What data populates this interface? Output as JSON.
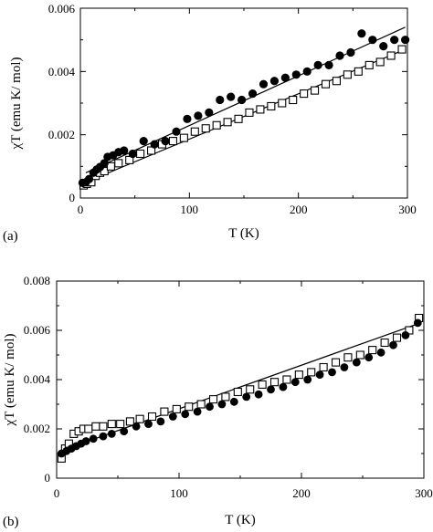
{
  "chart_data": [
    {
      "type": "scatter",
      "panel_label": "(a)",
      "xlabel": "T (K)",
      "ylabel": "χT (emu K/ mol)",
      "xlim": [
        0,
        300
      ],
      "ylim": [
        0,
        0.006
      ],
      "xticks": [
        "0",
        "100",
        "200",
        "300"
      ],
      "yticks": [
        "0",
        "0.002",
        "0.004",
        "0.006"
      ],
      "grid": false,
      "series": [
        {
          "marker": "filled-circle",
          "x": [
            2,
            5,
            8,
            12,
            15,
            18,
            22,
            25,
            30,
            35,
            40,
            48,
            58,
            68,
            78,
            88,
            98,
            108,
            118,
            128,
            138,
            148,
            158,
            168,
            178,
            188,
            198,
            208,
            218,
            228,
            238,
            248,
            258,
            268,
            278,
            288,
            298
          ],
          "y": [
            0.00048,
            0.0005,
            0.0006,
            0.0008,
            0.0009,
            0.00098,
            0.0011,
            0.0013,
            0.00135,
            0.00145,
            0.0015,
            0.0014,
            0.0018,
            0.0017,
            0.0018,
            0.0021,
            0.0025,
            0.0026,
            0.0027,
            0.0031,
            0.0032,
            0.0031,
            0.0033,
            0.0036,
            0.0037,
            0.0038,
            0.0039,
            0.004,
            0.0042,
            0.0042,
            0.0045,
            0.0046,
            0.0052,
            0.005,
            0.0048,
            0.005,
            0.005
          ]
        },
        {
          "marker": "open-square",
          "x": [
            3,
            6,
            10,
            14,
            18,
            22,
            28,
            35,
            45,
            55,
            65,
            75,
            85,
            95,
            105,
            115,
            125,
            135,
            145,
            155,
            165,
            175,
            185,
            195,
            205,
            215,
            225,
            235,
            245,
            255,
            265,
            275,
            285,
            295
          ],
          "y": [
            0.0004,
            0.00045,
            0.0005,
            0.0007,
            0.0008,
            0.00085,
            0.001,
            0.0011,
            0.0012,
            0.0014,
            0.0015,
            0.0017,
            0.0018,
            0.0019,
            0.0021,
            0.0022,
            0.0023,
            0.0024,
            0.0025,
            0.0027,
            0.0028,
            0.0029,
            0.003,
            0.0031,
            0.0033,
            0.0034,
            0.0036,
            0.0037,
            0.0039,
            0.004,
            0.0042,
            0.0043,
            0.0045,
            0.0047
          ]
        }
      ],
      "fit_lines": [
        {
          "x": [
            5,
            298
          ],
          "y": [
            0.0008,
            0.0054
          ]
        },
        {
          "x": [
            5,
            298
          ],
          "y": [
            0.0005,
            0.0047
          ]
        }
      ]
    },
    {
      "type": "scatter",
      "panel_label": "(b)",
      "xlabel": "T (K)",
      "ylabel": "χT (emu K/ mol)",
      "xlim": [
        0,
        300
      ],
      "ylim": [
        0,
        0.008
      ],
      "xticks": [
        "0",
        "100",
        "200",
        "300"
      ],
      "yticks": [
        "0",
        "0.002",
        "0.004",
        "0.006",
        "0.008"
      ],
      "grid": false,
      "series": [
        {
          "marker": "filled-circle",
          "x": [
            4,
            8,
            12,
            16,
            20,
            24,
            30,
            38,
            45,
            55,
            65,
            75,
            85,
            95,
            105,
            115,
            125,
            135,
            145,
            155,
            165,
            175,
            185,
            195,
            205,
            215,
            225,
            235,
            245,
            255,
            265,
            275,
            285,
            295
          ],
          "y": [
            0.001,
            0.0011,
            0.0012,
            0.0013,
            0.0014,
            0.0015,
            0.0016,
            0.0017,
            0.0018,
            0.0019,
            0.0021,
            0.0022,
            0.0023,
            0.0025,
            0.0026,
            0.0027,
            0.0029,
            0.003,
            0.0031,
            0.0033,
            0.0034,
            0.0036,
            0.0037,
            0.0039,
            0.004,
            0.0042,
            0.0043,
            0.0045,
            0.0047,
            0.0049,
            0.0051,
            0.0054,
            0.0058,
            0.0063
          ]
        },
        {
          "marker": "open-square",
          "x": [
            4,
            7,
            10,
            14,
            18,
            22,
            26,
            32,
            38,
            45,
            52,
            60,
            68,
            78,
            88,
            98,
            108,
            118,
            128,
            138,
            148,
            158,
            168,
            178,
            188,
            198,
            208,
            218,
            228,
            238,
            248,
            258,
            268,
            278,
            288,
            296
          ],
          "y": [
            0.0008,
            0.0012,
            0.0014,
            0.0018,
            0.0019,
            0.002,
            0.002,
            0.0021,
            0.0021,
            0.0022,
            0.0022,
            0.0023,
            0.0024,
            0.0025,
            0.0027,
            0.0028,
            0.0029,
            0.003,
            0.0032,
            0.0033,
            0.0035,
            0.0036,
            0.0038,
            0.0039,
            0.004,
            0.0042,
            0.0043,
            0.0045,
            0.0047,
            0.0049,
            0.005,
            0.0052,
            0.0055,
            0.0057,
            0.006,
            0.0065
          ]
        }
      ],
      "fit_lines": [
        {
          "x": [
            3,
            297
          ],
          "y": [
            0.0011,
            0.0063
          ]
        }
      ]
    }
  ]
}
